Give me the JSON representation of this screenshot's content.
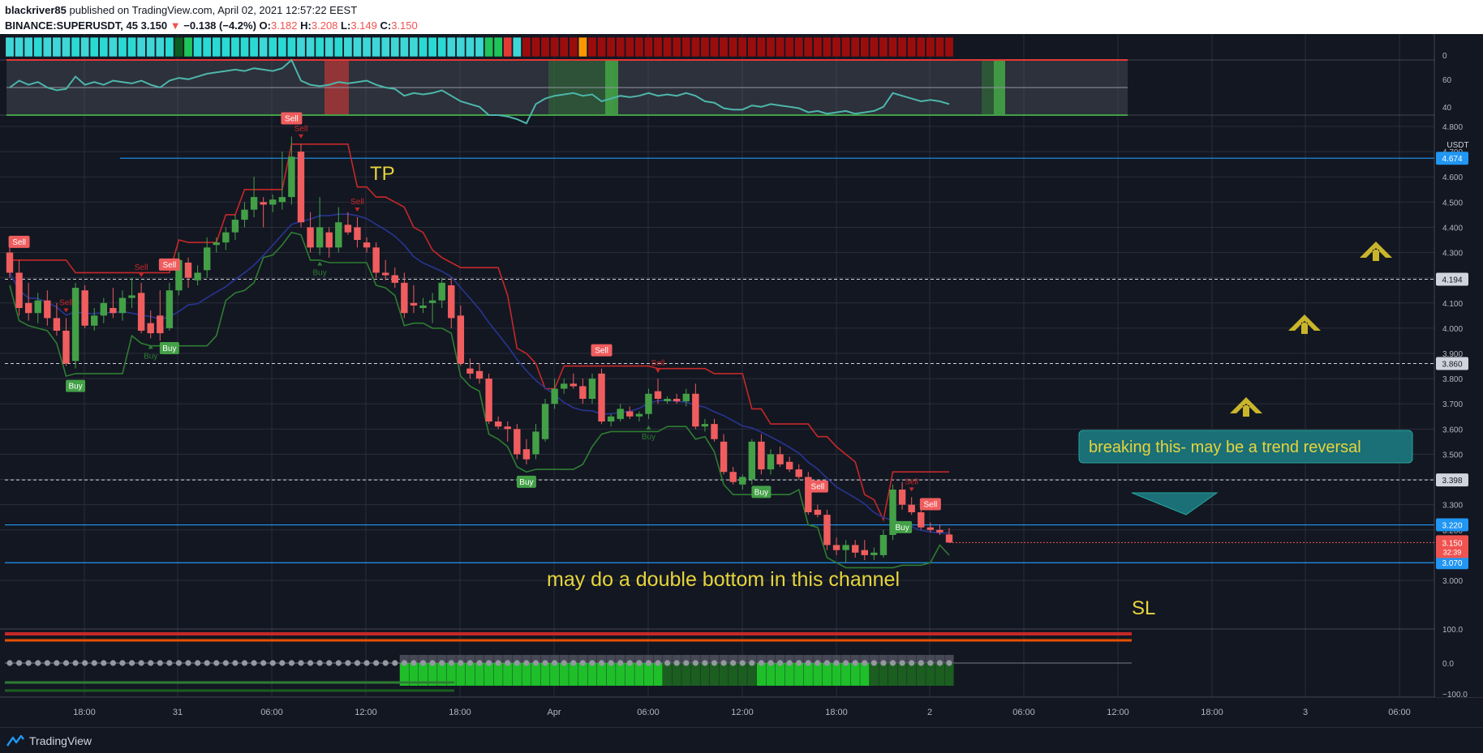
{
  "header": {
    "author": "blackriver85",
    "published": "published on TradingView.com, April 02, 2021 12:57:22 EEST",
    "symbol": "BINANCE:SUPERUSDT, 45",
    "price": "3.150",
    "change": "−0.138 (−4.2%)",
    "ohlc": {
      "o": "3.182",
      "h": "3.208",
      "l": "3.149",
      "c": "3.150"
    }
  },
  "footer": {
    "brand": "TradingView"
  },
  "colors": {
    "bg": "#131722",
    "grid": "#2a2e39",
    "up": "#26a69a",
    "down": "#ef5350",
    "bull_candle": "#43a047",
    "bear_candle": "#f05d5e",
    "annotation": "#e6d53b",
    "callout": "#1b6f77",
    "hline_blue": "#2196f3",
    "stop_red": "#b71c1c",
    "trail_green": "#388e3c",
    "ma_blue": "#1a237e",
    "rsi_line": "#4db6ac"
  },
  "chart_data": {
    "type": "candlestick",
    "currency": "USDT",
    "ylim": [
      2.93,
      4.84
    ],
    "y_ticks": [
      "4.800",
      "4.700",
      "4.600",
      "4.500",
      "4.400",
      "4.300",
      "4.200",
      "4.100",
      "4.000",
      "3.900",
      "3.800",
      "3.700",
      "3.600",
      "3.500",
      "3.400",
      "3.300",
      "3.200",
      "3.000"
    ],
    "x_ticks": [
      "18:00",
      "31",
      "06:00",
      "12:00",
      "18:00",
      "Apr",
      "06:00",
      "12:00",
      "18:00",
      "2",
      "06:00",
      "12:00",
      "18:00",
      "3",
      "06:00"
    ],
    "price_labels": [
      {
        "value": "4.674",
        "price": 4.674,
        "style": "blue"
      },
      {
        "value": "4.194",
        "price": 4.194,
        "style": "dashed"
      },
      {
        "value": "3.860",
        "price": 3.86,
        "style": "dashed"
      },
      {
        "value": "3.398",
        "price": 3.398,
        "style": "dashed"
      },
      {
        "value": "3.220",
        "price": 3.22,
        "style": "blue"
      },
      {
        "value": "3.070",
        "price": 3.07,
        "style": "blue"
      }
    ],
    "last_price": {
      "value": "3.150",
      "countdown": "32:39"
    },
    "candles_ohlc": [
      [
        4.3,
        4.33,
        4.2,
        4.22
      ],
      [
        4.22,
        4.27,
        4.05,
        4.08
      ],
      [
        4.1,
        4.18,
        4.03,
        4.06
      ],
      [
        4.06,
        4.14,
        4.02,
        4.11
      ],
      [
        4.11,
        4.15,
        4.01,
        4.04
      ],
      [
        4.04,
        4.1,
        3.97,
        3.99
      ],
      [
        3.99,
        4.04,
        3.85,
        3.86
      ],
      [
        3.87,
        4.18,
        3.84,
        4.16
      ],
      [
        4.15,
        4.17,
        4.0,
        4.01
      ],
      [
        4.01,
        4.08,
        3.99,
        4.05
      ],
      [
        4.05,
        4.12,
        4.02,
        4.1
      ],
      [
        4.08,
        4.16,
        4.04,
        4.06
      ],
      [
        4.06,
        4.15,
        4.03,
        4.12
      ],
      [
        4.12,
        4.2,
        4.08,
        4.13
      ],
      [
        4.14,
        4.18,
        3.98,
        3.99
      ],
      [
        4.02,
        4.07,
        3.96,
        3.98
      ],
      [
        4.05,
        4.15,
        3.95,
        3.98
      ],
      [
        4.0,
        4.18,
        3.99,
        4.15
      ],
      [
        4.15,
        4.3,
        4.13,
        4.27
      ],
      [
        4.26,
        4.28,
        4.16,
        4.2
      ],
      [
        4.19,
        4.25,
        4.17,
        4.22
      ],
      [
        4.23,
        4.36,
        4.2,
        4.32
      ],
      [
        4.33,
        4.36,
        4.3,
        4.34
      ],
      [
        4.34,
        4.4,
        4.31,
        4.38
      ],
      [
        4.38,
        4.45,
        4.35,
        4.43
      ],
      [
        4.43,
        4.5,
        4.4,
        4.47
      ],
      [
        4.47,
        4.6,
        4.44,
        4.52
      ],
      [
        4.5,
        4.52,
        4.4,
        4.49
      ],
      [
        4.49,
        4.53,
        4.46,
        4.51
      ],
      [
        4.5,
        4.7,
        4.47,
        4.52
      ],
      [
        4.52,
        4.76,
        4.49,
        4.68
      ],
      [
        4.7,
        4.73,
        4.4,
        4.42
      ],
      [
        4.4,
        4.46,
        4.3,
        4.32
      ],
      [
        4.32,
        4.52,
        4.29,
        4.4
      ],
      [
        4.38,
        4.4,
        4.28,
        4.32
      ],
      [
        4.32,
        4.48,
        4.3,
        4.42
      ],
      [
        4.41,
        4.46,
        4.37,
        4.38
      ],
      [
        4.4,
        4.44,
        4.32,
        4.35
      ],
      [
        4.34,
        4.36,
        4.3,
        4.32
      ],
      [
        4.32,
        4.34,
        4.2,
        4.22
      ],
      [
        4.22,
        4.27,
        4.19,
        4.21
      ],
      [
        4.21,
        4.24,
        4.16,
        4.18
      ],
      [
        4.18,
        4.22,
        4.04,
        4.06
      ],
      [
        4.1,
        4.17,
        4.06,
        4.09
      ],
      [
        4.08,
        4.12,
        4.06,
        4.09
      ],
      [
        4.1,
        4.14,
        4.02,
        4.11
      ],
      [
        4.11,
        4.2,
        4.08,
        4.18
      ],
      [
        4.17,
        4.2,
        4.0,
        4.04
      ],
      [
        4.05,
        4.09,
        3.85,
        3.86
      ],
      [
        3.84,
        3.88,
        3.8,
        3.82
      ],
      [
        3.83,
        3.86,
        3.78,
        3.8
      ],
      [
        3.8,
        3.82,
        3.62,
        3.63
      ],
      [
        3.63,
        3.65,
        3.6,
        3.61
      ],
      [
        3.61,
        3.63,
        3.55,
        3.6
      ],
      [
        3.6,
        3.62,
        3.48,
        3.5
      ],
      [
        3.52,
        3.56,
        3.46,
        3.48
      ],
      [
        3.5,
        3.62,
        3.48,
        3.59
      ],
      [
        3.56,
        3.72,
        3.55,
        3.7
      ],
      [
        3.7,
        3.8,
        3.68,
        3.76
      ],
      [
        3.76,
        3.8,
        3.74,
        3.78
      ],
      [
        3.78,
        3.82,
        3.76,
        3.77
      ],
      [
        3.77,
        3.8,
        3.7,
        3.72
      ],
      [
        3.72,
        3.82,
        3.7,
        3.8
      ],
      [
        3.82,
        3.84,
        3.62,
        3.63
      ],
      [
        3.63,
        3.66,
        3.61,
        3.65
      ],
      [
        3.64,
        3.7,
        3.63,
        3.68
      ],
      [
        3.67,
        3.69,
        3.64,
        3.65
      ],
      [
        3.65,
        3.67,
        3.63,
        3.66
      ],
      [
        3.66,
        3.76,
        3.64,
        3.74
      ],
      [
        3.75,
        3.8,
        3.7,
        3.72
      ],
      [
        3.71,
        3.73,
        3.7,
        3.72
      ],
      [
        3.72,
        3.74,
        3.7,
        3.71
      ],
      [
        3.71,
        3.76,
        3.69,
        3.74
      ],
      [
        3.74,
        3.78,
        3.6,
        3.61
      ],
      [
        3.61,
        3.64,
        3.59,
        3.62
      ],
      [
        3.62,
        3.64,
        3.55,
        3.56
      ],
      [
        3.55,
        3.58,
        3.42,
        3.43
      ],
      [
        3.43,
        3.45,
        3.38,
        3.39
      ],
      [
        3.38,
        3.42,
        3.36,
        3.41
      ],
      [
        3.4,
        3.56,
        3.38,
        3.55
      ],
      [
        3.55,
        3.58,
        3.42,
        3.44
      ],
      [
        3.44,
        3.52,
        3.42,
        3.5
      ],
      [
        3.5,
        3.53,
        3.45,
        3.46
      ],
      [
        3.47,
        3.49,
        3.43,
        3.44
      ],
      [
        3.44,
        3.46,
        3.4,
        3.41
      ],
      [
        3.41,
        3.43,
        3.26,
        3.27
      ],
      [
        3.28,
        3.3,
        3.25,
        3.26
      ],
      [
        3.26,
        3.28,
        3.12,
        3.14
      ],
      [
        3.14,
        3.17,
        3.1,
        3.12
      ],
      [
        3.12,
        3.16,
        3.07,
        3.14
      ],
      [
        3.14,
        3.16,
        3.09,
        3.11
      ],
      [
        3.12,
        3.16,
        3.08,
        3.1
      ],
      [
        3.1,
        3.13,
        3.08,
        3.11
      ],
      [
        3.1,
        3.2,
        3.09,
        3.18
      ],
      [
        3.18,
        3.38,
        3.16,
        3.36
      ],
      [
        3.36,
        3.39,
        3.28,
        3.3
      ],
      [
        3.3,
        3.33,
        3.26,
        3.27
      ],
      [
        3.27,
        3.29,
        3.2,
        3.21
      ],
      [
        3.21,
        3.23,
        3.19,
        3.2
      ],
      [
        3.2,
        3.22,
        3.18,
        3.19
      ],
      [
        3.182,
        3.208,
        3.149,
        3.15
      ]
    ]
  },
  "signals": {
    "sell": [
      {
        "label": "Sell",
        "i": 1,
        "strong": true
      },
      {
        "label": "Sell",
        "i": 14,
        "strong": false
      },
      {
        "label": "Sell",
        "i": 6,
        "strong": false
      },
      {
        "label": "Sell",
        "i": 17,
        "strong": true
      },
      {
        "label": "Sell",
        "i": 30,
        "strong": true
      },
      {
        "label": "Sell",
        "i": 31,
        "strong": false
      },
      {
        "label": "Sell",
        "i": 37,
        "strong": false
      },
      {
        "label": "Sell",
        "i": 63,
        "strong": true
      },
      {
        "label": "Sell",
        "i": 69,
        "strong": false
      },
      {
        "label": "Sell",
        "i": 86,
        "strong": true
      },
      {
        "label": "Sell",
        "i": 96,
        "strong": false
      },
      {
        "label": "Sell",
        "i": 98,
        "strong": true
      }
    ],
    "buy": [
      {
        "label": "Buy",
        "i": 7,
        "strong": true
      },
      {
        "label": "Buy",
        "i": 15,
        "strong": false
      },
      {
        "label": "Buy",
        "i": 17,
        "strong": true
      },
      {
        "label": "Buy",
        "i": 33,
        "strong": false
      },
      {
        "label": "Buy",
        "i": 55,
        "strong": true
      },
      {
        "label": "Buy",
        "i": 68,
        "strong": false
      },
      {
        "label": "Buy",
        "i": 80,
        "strong": true
      },
      {
        "label": "Buy",
        "i": 95,
        "strong": true
      }
    ]
  },
  "annotations": {
    "tp": "TP",
    "sl": "SL",
    "channel_note": "may do a double bottom in this channel",
    "callout": "breaking this- may be a trend reversal"
  },
  "rsi_pane": {
    "ticks": [
      "0",
      "60",
      "40"
    ]
  },
  "bottom_pane": {
    "ticks": [
      "100.0",
      "0.0",
      "−100.0"
    ]
  }
}
